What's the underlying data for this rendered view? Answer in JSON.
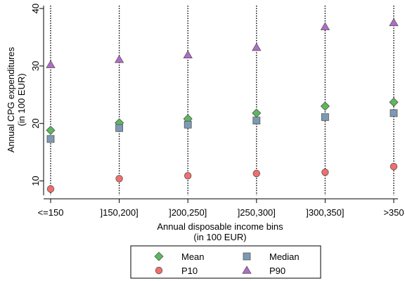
{
  "chart_data": {
    "type": "scatter",
    "categories": [
      "<=150",
      "]150,200]",
      "]200,250]",
      "]250,300]",
      "]300,350]",
      ">350"
    ],
    "series": [
      {
        "name": "Mean",
        "marker": "diamond",
        "color": "#5cb85c",
        "values": [
          18.8,
          20.1,
          20.8,
          21.8,
          23.0,
          23.7
        ]
      },
      {
        "name": "Median",
        "marker": "square",
        "color": "#7d9ab4",
        "values": [
          17.3,
          19.2,
          19.8,
          20.5,
          21.1,
          21.8
        ]
      },
      {
        "name": "P10",
        "marker": "circle",
        "color": "#f26d6d",
        "values": [
          8.6,
          10.4,
          10.9,
          11.3,
          11.5,
          12.5
        ]
      },
      {
        "name": "P90",
        "marker": "triangle",
        "color": "#b36ac9",
        "values": [
          30.2,
          31.1,
          31.9,
          33.2,
          36.8,
          37.5
        ]
      }
    ],
    "xlabel": [
      "Annual disposable income bins",
      "(in 100 EUR)"
    ],
    "ylabel": [
      "Annual CPG expenditures",
      "(in 100 EUR)"
    ],
    "yticks": [
      10,
      20,
      30,
      40
    ],
    "ylim": [
      7.5,
      40.5
    ],
    "grid": false,
    "vertical_dotted_lines": true,
    "legend_position": "bottom",
    "legend_columns": 2
  }
}
